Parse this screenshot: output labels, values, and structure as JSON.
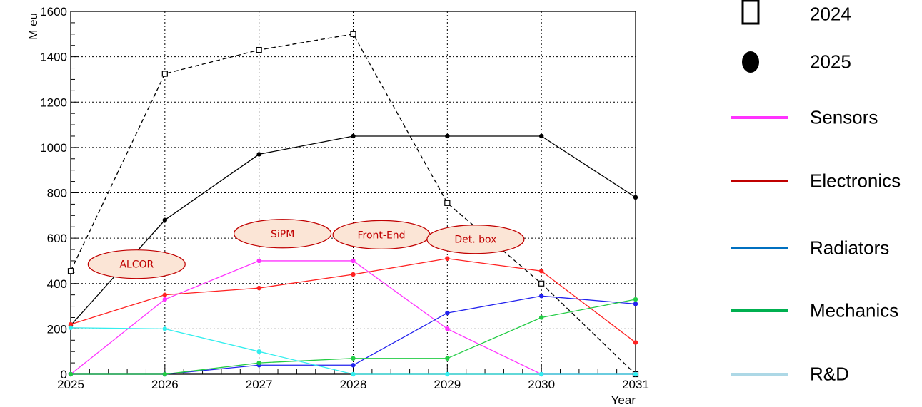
{
  "chart_data": {
    "type": "line",
    "xlabel": "Year",
    "ylabel": "M eu",
    "xlim": [
      2025,
      2031
    ],
    "ylim": [
      0,
      1600
    ],
    "x_ticks": [
      "2025",
      "2026",
      "2027",
      "2028",
      "2029",
      "2030",
      "2031"
    ],
    "y_ticks": [
      "0",
      "200",
      "400",
      "600",
      "800",
      "1000",
      "1200",
      "1400",
      "1600"
    ],
    "grid": true,
    "x": [
      2025,
      2026,
      2027,
      2028,
      2029,
      2030,
      2031
    ],
    "series": [
      {
        "name": "2024",
        "color": "#000000",
        "style": "dashed",
        "marker": "open-square",
        "values": [
          455,
          1325,
          1430,
          1500,
          755,
          400,
          0
        ]
      },
      {
        "name": "2025",
        "color": "#000000",
        "style": "solid",
        "marker": "filled-circle",
        "values": [
          215,
          680,
          970,
          1050,
          1050,
          1050,
          780
        ]
      },
      {
        "name": "Sensors",
        "color": "#ff33ff",
        "style": "solid",
        "marker": "filled-circle",
        "values": [
          0,
          330,
          500,
          500,
          200,
          0,
          0
        ]
      },
      {
        "name": "Electronics",
        "color": "#ff2222",
        "style": "solid",
        "marker": "filled-circle",
        "values": [
          220,
          350,
          380,
          440,
          510,
          455,
          140
        ]
      },
      {
        "name": "Radiators",
        "color": "#2222ee",
        "style": "solid",
        "marker": "filled-circle",
        "values": [
          0,
          0,
          40,
          40,
          270,
          345,
          310
        ]
      },
      {
        "name": "Mechanics",
        "color": "#22cc44",
        "style": "solid",
        "marker": "filled-circle",
        "values": [
          0,
          0,
          50,
          70,
          70,
          250,
          330
        ]
      },
      {
        "name": "R&D",
        "color": "#33eeee",
        "style": "solid",
        "marker": "filled-circle",
        "values": [
          205,
          200,
          100,
          0,
          0,
          0,
          0
        ]
      }
    ],
    "annotations": [
      {
        "text": "ALCOR",
        "x": 2025.7,
        "y": 485
      },
      {
        "text": "SiPM",
        "x": 2027.25,
        "y": 620
      },
      {
        "text": "Front-End",
        "x": 2028.3,
        "y": 615
      },
      {
        "text": "Det. box",
        "x": 2029.3,
        "y": 595
      }
    ],
    "legend": {
      "placement": "right",
      "entries": [
        {
          "label": "2024",
          "symbol": "open-square",
          "color": "#000000"
        },
        {
          "label": "2025",
          "symbol": "filled-circle",
          "color": "#000000"
        },
        {
          "label": "Sensors",
          "symbol": "line",
          "color": "#ff33ff"
        },
        {
          "label": "Electronics",
          "symbol": "line",
          "color": "#c00000"
        },
        {
          "label": "Radiators",
          "symbol": "line",
          "color": "#0070c0"
        },
        {
          "label": "Mechanics",
          "symbol": "line",
          "color": "#00b050"
        },
        {
          "label": "R&D",
          "symbol": "line",
          "color": "#add8e6"
        }
      ]
    }
  }
}
